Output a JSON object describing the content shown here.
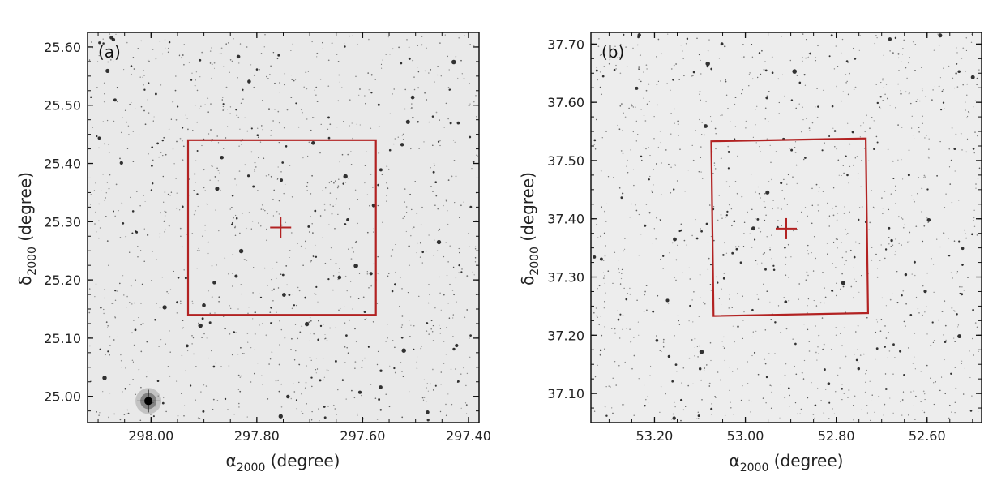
{
  "figure": {
    "panels": [
      {
        "tag": "(a)",
        "xlabel_symbol": "α",
        "xlabel_sub": "2000",
        "xlabel_unit": " (degree)",
        "ylabel_symbol": "δ",
        "ylabel_sub": "2000",
        "ylabel_unit": " (degree)",
        "xlim": [
          298.12,
          297.38
        ],
        "ylim": [
          24.955,
          25.625
        ],
        "x_ticks": [
          "298.00",
          "297.80",
          "297.60",
          "297.40"
        ],
        "x_tick_values": [
          298.0,
          297.8,
          297.6,
          297.4
        ],
        "y_ticks": [
          "25.00",
          "25.10",
          "25.20",
          "25.30",
          "25.40",
          "25.50",
          "25.60"
        ],
        "y_tick_values": [
          25.0,
          25.1,
          25.2,
          25.3,
          25.4,
          25.5,
          25.6
        ],
        "box": [
          [
            297.93,
            25.44
          ],
          [
            297.575,
            25.44
          ],
          [
            297.575,
            25.14
          ],
          [
            297.93,
            25.14
          ]
        ],
        "center": [
          297.755,
          25.29
        ],
        "bright_star": [
          298.005,
          24.992
        ],
        "sky_color": "#e9e9e9",
        "seed": 11
      },
      {
        "tag": "(b)",
        "xlabel_symbol": "α",
        "xlabel_sub": "2000",
        "xlabel_unit": " (degree)",
        "ylabel_symbol": "δ",
        "ylabel_sub": "2000",
        "ylabel_unit": " (degree)",
        "xlim": [
          53.34,
          52.48
        ],
        "ylim": [
          37.05,
          37.72
        ],
        "x_ticks": [
          "53.20",
          "53.00",
          "52.80",
          "52.60"
        ],
        "x_tick_values": [
          53.2,
          53.0,
          52.8,
          52.6
        ],
        "y_ticks": [
          "37.10",
          "37.20",
          "37.30",
          "37.40",
          "37.50",
          "37.60",
          "37.70"
        ],
        "y_tick_values": [
          37.1,
          37.2,
          37.3,
          37.4,
          37.5,
          37.6,
          37.7
        ],
        "box": [
          [
            53.075,
            37.533
          ],
          [
            52.735,
            37.538
          ],
          [
            52.73,
            37.238
          ],
          [
            53.07,
            37.233
          ]
        ],
        "center": [
          52.91,
          37.383
        ],
        "bright_star": null,
        "sky_color": "#ededed",
        "seed": 29
      }
    ],
    "colors": {
      "box": "#b22222",
      "frame": "#111111",
      "stars": "#111111"
    }
  }
}
